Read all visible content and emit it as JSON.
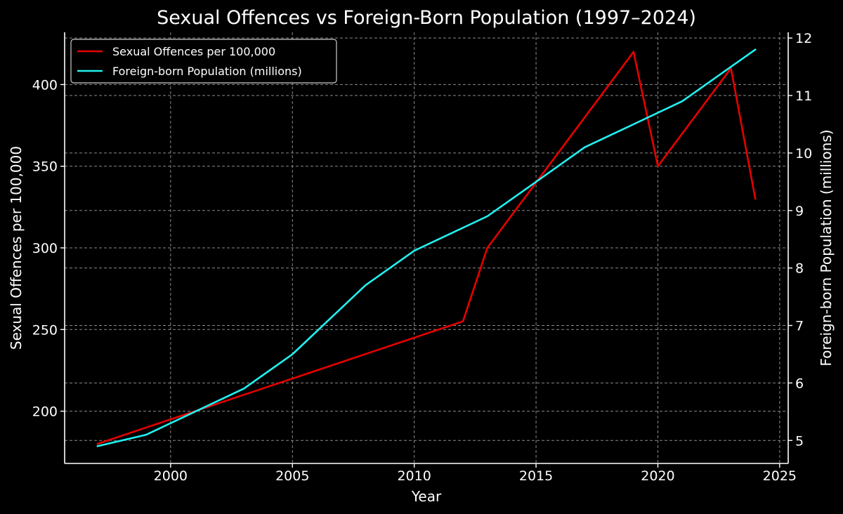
{
  "chart_data": {
    "type": "line",
    "title": "Sexual Offences vs Foreign-Born Population (1997–2024)",
    "xlabel": "Year",
    "ylabel_left": "Sexual Offences per 100,000",
    "ylabel_right": "Foreign-born Population (millions)",
    "xlim": [
      1995.65,
      2025.35
    ],
    "ylim_left": [
      168.0,
      432.0
    ],
    "ylim_right": [
      4.6,
      12.1
    ],
    "xticks": [
      "2000",
      "2005",
      "2010",
      "2015",
      "2020",
      "2025"
    ],
    "yticks_left": [
      "200",
      "250",
      "300",
      "350",
      "400"
    ],
    "yticks_right": [
      "5",
      "6",
      "7",
      "8",
      "9",
      "10",
      "11",
      "12"
    ],
    "grid": true,
    "legend_position": "top-left",
    "series": [
      {
        "name": "Sexual Offences per 100,000",
        "axis": "left",
        "color": "#e60000",
        "x": [
          1997,
          1999,
          2001,
          2003,
          2005,
          2008,
          2012,
          2013,
          2015,
          2019,
          2020,
          2023,
          2024
        ],
        "y": [
          180,
          190,
          200,
          210,
          220,
          235,
          255,
          300,
          340,
          420,
          350,
          410,
          330
        ]
      },
      {
        "name": "Foreign-born Population (millions)",
        "axis": "right",
        "color": "#22f0f0",
        "x": [
          1997,
          1999,
          2001,
          2003,
          2005,
          2008,
          2010,
          2013,
          2015,
          2017,
          2019,
          2021,
          2024
        ],
        "y": [
          4.9,
          5.1,
          5.5,
          5.9,
          6.5,
          7.7,
          8.3,
          8.9,
          9.5,
          10.1,
          10.5,
          10.9,
          11.8
        ]
      }
    ]
  }
}
